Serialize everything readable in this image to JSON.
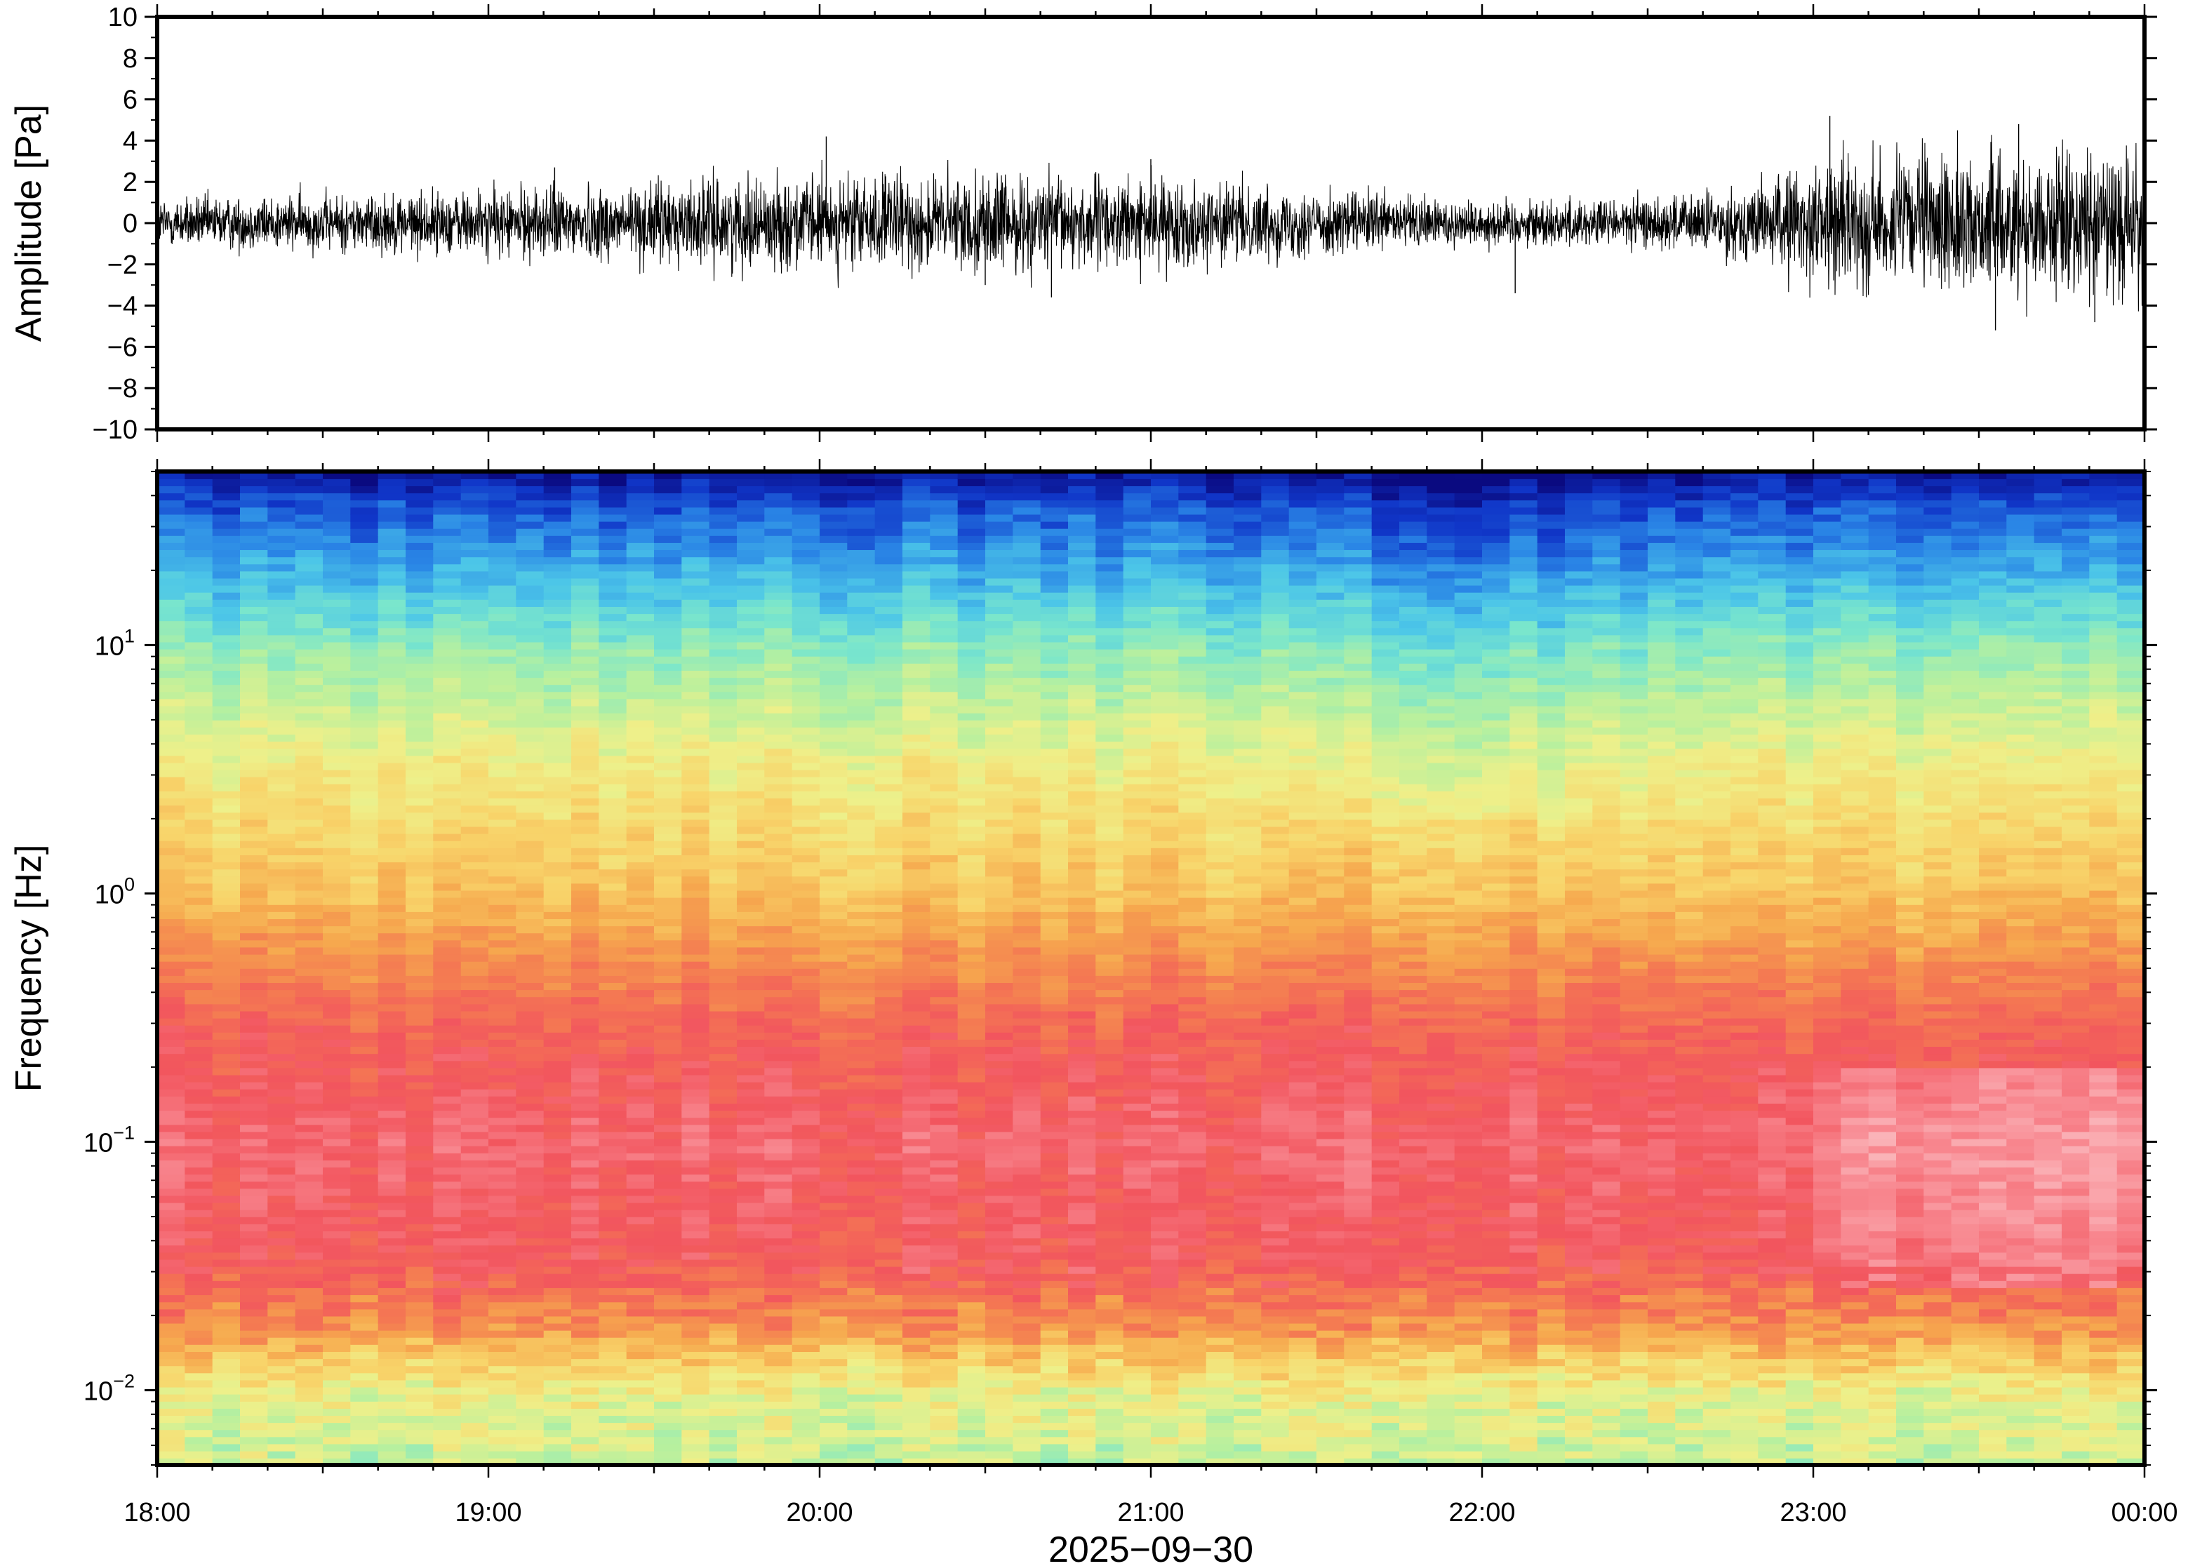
{
  "chart_data": [
    {
      "type": "line",
      "panel": "waveform",
      "ylabel": "Amplitude [Pa]",
      "ylim": [
        -10,
        10
      ],
      "yticks": [
        10,
        8,
        6,
        4,
        2,
        0,
        -2,
        -4,
        -6,
        -8,
        -10
      ],
      "ytick_labels": [
        "10",
        "8",
        "6",
        "4",
        "2",
        "0",
        "−2",
        "−4",
        "−6",
        "−8",
        "−10"
      ],
      "x_range_hours": [
        18,
        24
      ],
      "envelope": {
        "x_hours": [
          18.0,
          18.5,
          19.0,
          19.5,
          20.0,
          20.5,
          21.0,
          21.5,
          22.0,
          22.5,
          22.8,
          23.0,
          23.3,
          23.6,
          24.0
        ],
        "amplitude_pa": [
          1.0,
          1.1,
          1.3,
          1.6,
          1.8,
          1.9,
          1.7,
          1.3,
          0.9,
          1.0,
          1.4,
          2.4,
          2.6,
          2.7,
          2.8
        ]
      },
      "spikes": [
        {
          "x_hours": 20.02,
          "y": 4.2
        },
        {
          "x_hours": 19.2,
          "y": 2.7
        },
        {
          "x_hours": 21.0,
          "y": 3.1
        },
        {
          "x_hours": 20.5,
          "y": -3.0
        },
        {
          "x_hours": 20.7,
          "y": -3.6
        },
        {
          "x_hours": 22.1,
          "y": -3.4
        },
        {
          "x_hours": 23.05,
          "y": 5.2
        },
        {
          "x_hours": 23.55,
          "y": -5.2
        },
        {
          "x_hours": 23.62,
          "y": 4.8
        },
        {
          "x_hours": 23.85,
          "y": -4.8
        }
      ],
      "grid": false
    },
    {
      "type": "heatmap",
      "panel": "spectrogram",
      "ylabel": "Frequency [Hz]",
      "yscale": "log",
      "ylim": [
        0.005,
        50
      ],
      "yticks": [
        0.01,
        0.1,
        1,
        10
      ],
      "ytick_labels": [
        {
          "base": "10",
          "exp": "−2"
        },
        {
          "base": "10",
          "exp": "−1"
        },
        {
          "base": "10",
          "exp": "0"
        },
        {
          "base": "10",
          "exp": "1"
        }
      ],
      "xticks": [
        "18:00",
        "19:00",
        "20:00",
        "21:00",
        "22:00",
        "23:00",
        "00:00"
      ],
      "xlabel": "2025−09−30",
      "colormap": [
        "#0a0a80",
        "#1036c8",
        "#2a86e6",
        "#4cc6e8",
        "#7ae6cc",
        "#b8f09e",
        "#eef08a",
        "#f8d46a",
        "#f6a84e",
        "#f47a52",
        "#f2555e",
        "#f88890",
        "#fbc0c4"
      ],
      "time_bins": 72,
      "frequency_bins": 140,
      "grid": false
    }
  ]
}
